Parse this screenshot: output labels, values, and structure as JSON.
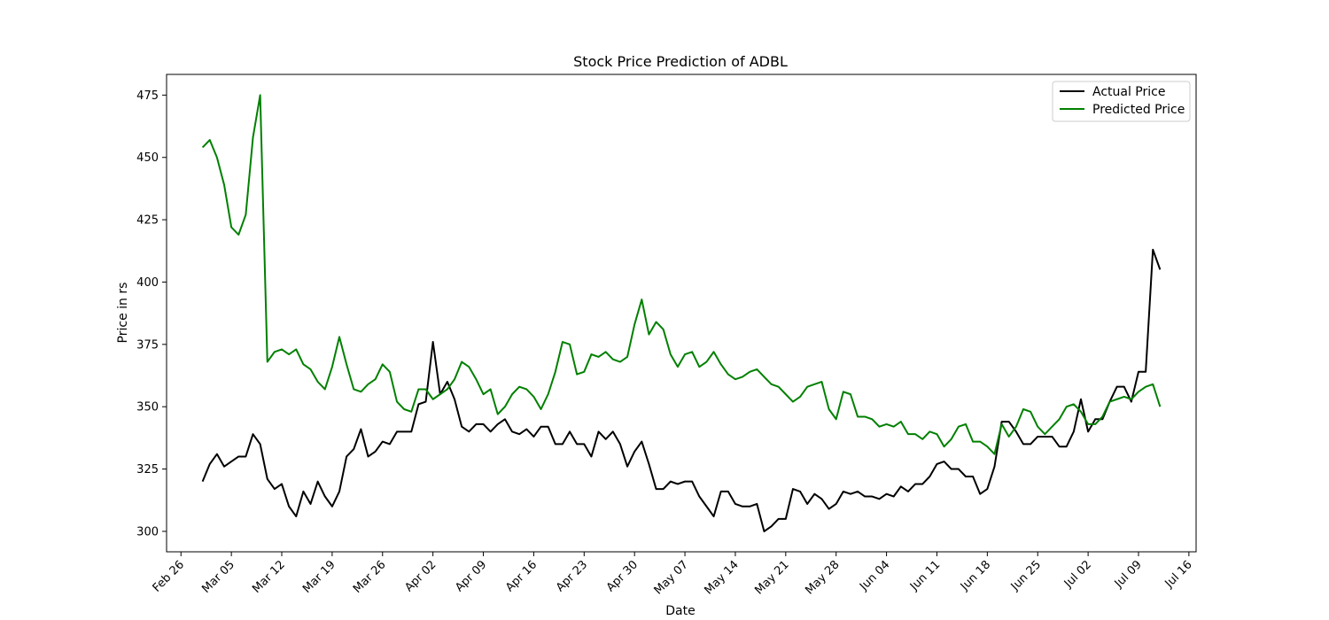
{
  "chart_data": {
    "type": "line",
    "title": "Stock Price Prediction of ADBL",
    "xlabel": "Date",
    "ylabel": "Price in rs",
    "x_tick_labels": [
      "Feb 26",
      "Mar 05",
      "Mar 12",
      "Mar 19",
      "Mar 26",
      "Apr 02",
      "Apr 09",
      "Apr 16",
      "Apr 23",
      "Apr 30",
      "May 07",
      "May 14",
      "May 21",
      "May 28",
      "Jun 04",
      "Jun 11",
      "Jun 18",
      "Jun 25",
      "Jul 02",
      "Jul 09",
      "Jul 16"
    ],
    "y_ticks": [
      300,
      325,
      350,
      375,
      400,
      425,
      450,
      475
    ],
    "xlim": [
      "2018-02-24",
      "2018-07-17"
    ],
    "ylim": [
      291.8,
      483.3
    ],
    "grid": false,
    "legend_position": "top-right",
    "series": [
      {
        "name": "Actual Price",
        "color": "#000000",
        "points": [
          [
            "2018-03-01",
            320
          ],
          [
            "2018-03-02",
            327
          ],
          [
            "2018-03-03",
            331
          ],
          [
            "2018-03-04",
            326
          ],
          [
            "2018-03-05",
            328
          ],
          [
            "2018-03-06",
            330
          ],
          [
            "2018-03-07",
            330
          ],
          [
            "2018-03-08",
            339
          ],
          [
            "2018-03-09",
            335
          ],
          [
            "2018-03-10",
            321
          ],
          [
            "2018-03-11",
            317
          ],
          [
            "2018-03-12",
            319
          ],
          [
            "2018-03-13",
            310
          ],
          [
            "2018-03-14",
            306
          ],
          [
            "2018-03-15",
            316
          ],
          [
            "2018-03-16",
            311
          ],
          [
            "2018-03-17",
            320
          ],
          [
            "2018-03-18",
            314
          ],
          [
            "2018-03-19",
            310
          ],
          [
            "2018-03-20",
            316
          ],
          [
            "2018-03-21",
            330
          ],
          [
            "2018-03-22",
            333
          ],
          [
            "2018-03-23",
            341
          ],
          [
            "2018-03-24",
            330
          ],
          [
            "2018-03-25",
            332
          ],
          [
            "2018-03-26",
            336
          ],
          [
            "2018-03-27",
            335
          ],
          [
            "2018-03-28",
            340
          ],
          [
            "2018-03-29",
            340
          ],
          [
            "2018-03-30",
            340
          ],
          [
            "2018-03-31",
            351
          ],
          [
            "2018-04-01",
            352
          ],
          [
            "2018-04-02",
            376
          ],
          [
            "2018-04-03",
            355
          ],
          [
            "2018-04-04",
            360
          ],
          [
            "2018-04-05",
            353
          ],
          [
            "2018-04-06",
            342
          ],
          [
            "2018-04-07",
            340
          ],
          [
            "2018-04-08",
            343
          ],
          [
            "2018-04-09",
            343
          ],
          [
            "2018-04-10",
            340
          ],
          [
            "2018-04-11",
            343
          ],
          [
            "2018-04-12",
            345
          ],
          [
            "2018-04-13",
            340
          ],
          [
            "2018-04-14",
            339
          ],
          [
            "2018-04-15",
            341
          ],
          [
            "2018-04-16",
            338
          ],
          [
            "2018-04-17",
            342
          ],
          [
            "2018-04-18",
            342
          ],
          [
            "2018-04-19",
            335
          ],
          [
            "2018-04-20",
            335
          ],
          [
            "2018-04-21",
            340
          ],
          [
            "2018-04-22",
            335
          ],
          [
            "2018-04-23",
            335
          ],
          [
            "2018-04-24",
            330
          ],
          [
            "2018-04-25",
            340
          ],
          [
            "2018-04-26",
            337
          ],
          [
            "2018-04-27",
            340
          ],
          [
            "2018-04-28",
            335
          ],
          [
            "2018-04-29",
            326
          ],
          [
            "2018-04-30",
            332
          ],
          [
            "2018-05-01",
            336
          ],
          [
            "2018-05-02",
            327
          ],
          [
            "2018-05-03",
            317
          ],
          [
            "2018-05-04",
            317
          ],
          [
            "2018-05-05",
            320
          ],
          [
            "2018-05-06",
            319
          ],
          [
            "2018-05-07",
            320
          ],
          [
            "2018-05-08",
            320
          ],
          [
            "2018-05-09",
            314
          ],
          [
            "2018-05-10",
            310
          ],
          [
            "2018-05-11",
            306
          ],
          [
            "2018-05-12",
            316
          ],
          [
            "2018-05-13",
            316
          ],
          [
            "2018-05-14",
            311
          ],
          [
            "2018-05-15",
            310
          ],
          [
            "2018-05-16",
            310
          ],
          [
            "2018-05-17",
            311
          ],
          [
            "2018-05-18",
            300
          ],
          [
            "2018-05-19",
            302
          ],
          [
            "2018-05-20",
            305
          ],
          [
            "2018-05-21",
            305
          ],
          [
            "2018-05-22",
            317
          ],
          [
            "2018-05-23",
            316
          ],
          [
            "2018-05-24",
            311
          ],
          [
            "2018-05-25",
            315
          ],
          [
            "2018-05-26",
            313
          ],
          [
            "2018-05-27",
            309
          ],
          [
            "2018-05-28",
            311
          ],
          [
            "2018-05-29",
            316
          ],
          [
            "2018-05-30",
            315
          ],
          [
            "2018-05-31",
            316
          ],
          [
            "2018-06-01",
            314
          ],
          [
            "2018-06-02",
            314
          ],
          [
            "2018-06-03",
            313
          ],
          [
            "2018-06-04",
            315
          ],
          [
            "2018-06-05",
            314
          ],
          [
            "2018-06-06",
            318
          ],
          [
            "2018-06-07",
            316
          ],
          [
            "2018-06-08",
            319
          ],
          [
            "2018-06-09",
            319
          ],
          [
            "2018-06-10",
            322
          ],
          [
            "2018-06-11",
            327
          ],
          [
            "2018-06-12",
            328
          ],
          [
            "2018-06-13",
            325
          ],
          [
            "2018-06-14",
            325
          ],
          [
            "2018-06-15",
            322
          ],
          [
            "2018-06-16",
            322
          ],
          [
            "2018-06-17",
            315
          ],
          [
            "2018-06-18",
            317
          ],
          [
            "2018-06-19",
            326
          ],
          [
            "2018-06-20",
            344
          ],
          [
            "2018-06-21",
            344
          ],
          [
            "2018-06-22",
            340
          ],
          [
            "2018-06-23",
            335
          ],
          [
            "2018-06-24",
            335
          ],
          [
            "2018-06-25",
            338
          ],
          [
            "2018-06-26",
            338
          ],
          [
            "2018-06-27",
            338
          ],
          [
            "2018-06-28",
            334
          ],
          [
            "2018-06-29",
            334
          ],
          [
            "2018-06-30",
            340
          ],
          [
            "2018-07-01",
            353
          ],
          [
            "2018-07-02",
            340
          ],
          [
            "2018-07-03",
            345
          ],
          [
            "2018-07-04",
            345
          ],
          [
            "2018-07-05",
            352
          ],
          [
            "2018-07-06",
            358
          ],
          [
            "2018-07-07",
            358
          ],
          [
            "2018-07-08",
            352
          ],
          [
            "2018-07-09",
            364
          ],
          [
            "2018-07-10",
            364
          ],
          [
            "2018-07-11",
            413
          ],
          [
            "2018-07-12",
            405
          ]
        ]
      },
      {
        "name": "Predicted Price",
        "color": "#008000",
        "points": [
          [
            "2018-03-01",
            454
          ],
          [
            "2018-03-02",
            457
          ],
          [
            "2018-03-03",
            450
          ],
          [
            "2018-03-04",
            439
          ],
          [
            "2018-03-05",
            422
          ],
          [
            "2018-03-06",
            419
          ],
          [
            "2018-03-07",
            427
          ],
          [
            "2018-03-08",
            458
          ],
          [
            "2018-03-09",
            475
          ],
          [
            "2018-03-10",
            368
          ],
          [
            "2018-03-11",
            372
          ],
          [
            "2018-03-12",
            373
          ],
          [
            "2018-03-13",
            371
          ],
          [
            "2018-03-14",
            373
          ],
          [
            "2018-03-15",
            367
          ],
          [
            "2018-03-16",
            365
          ],
          [
            "2018-03-17",
            360
          ],
          [
            "2018-03-18",
            357
          ],
          [
            "2018-03-19",
            366
          ],
          [
            "2018-03-20",
            378
          ],
          [
            "2018-03-21",
            367
          ],
          [
            "2018-03-22",
            357
          ],
          [
            "2018-03-23",
            356
          ],
          [
            "2018-03-24",
            359
          ],
          [
            "2018-03-25",
            361
          ],
          [
            "2018-03-26",
            367
          ],
          [
            "2018-03-27",
            364
          ],
          [
            "2018-03-28",
            352
          ],
          [
            "2018-03-29",
            349
          ],
          [
            "2018-03-30",
            348
          ],
          [
            "2018-03-31",
            357
          ],
          [
            "2018-04-01",
            357
          ],
          [
            "2018-04-02",
            353
          ],
          [
            "2018-04-03",
            355
          ],
          [
            "2018-04-04",
            357
          ],
          [
            "2018-04-05",
            361
          ],
          [
            "2018-04-06",
            368
          ],
          [
            "2018-04-07",
            366
          ],
          [
            "2018-04-08",
            361
          ],
          [
            "2018-04-09",
            355
          ],
          [
            "2018-04-10",
            357
          ],
          [
            "2018-04-11",
            347
          ],
          [
            "2018-04-12",
            350
          ],
          [
            "2018-04-13",
            355
          ],
          [
            "2018-04-14",
            358
          ],
          [
            "2018-04-15",
            357
          ],
          [
            "2018-04-16",
            354
          ],
          [
            "2018-04-17",
            349
          ],
          [
            "2018-04-18",
            355
          ],
          [
            "2018-04-19",
            364
          ],
          [
            "2018-04-20",
            376
          ],
          [
            "2018-04-21",
            375
          ],
          [
            "2018-04-22",
            363
          ],
          [
            "2018-04-23",
            364
          ],
          [
            "2018-04-24",
            371
          ],
          [
            "2018-04-25",
            370
          ],
          [
            "2018-04-26",
            372
          ],
          [
            "2018-04-27",
            369
          ],
          [
            "2018-04-28",
            368
          ],
          [
            "2018-04-29",
            370
          ],
          [
            "2018-04-30",
            383
          ],
          [
            "2018-05-01",
            393
          ],
          [
            "2018-05-02",
            379
          ],
          [
            "2018-05-03",
            384
          ],
          [
            "2018-05-04",
            381
          ],
          [
            "2018-05-05",
            371
          ],
          [
            "2018-05-06",
            366
          ],
          [
            "2018-05-07",
            371
          ],
          [
            "2018-05-08",
            372
          ],
          [
            "2018-05-09",
            366
          ],
          [
            "2018-05-10",
            368
          ],
          [
            "2018-05-11",
            372
          ],
          [
            "2018-05-12",
            367
          ],
          [
            "2018-05-13",
            363
          ],
          [
            "2018-05-14",
            361
          ],
          [
            "2018-05-15",
            362
          ],
          [
            "2018-05-16",
            364
          ],
          [
            "2018-05-17",
            365
          ],
          [
            "2018-05-18",
            362
          ],
          [
            "2018-05-19",
            359
          ],
          [
            "2018-05-20",
            358
          ],
          [
            "2018-05-21",
            355
          ],
          [
            "2018-05-22",
            352
          ],
          [
            "2018-05-23",
            354
          ],
          [
            "2018-05-24",
            358
          ],
          [
            "2018-05-25",
            359
          ],
          [
            "2018-05-26",
            360
          ],
          [
            "2018-05-27",
            349
          ],
          [
            "2018-05-28",
            345
          ],
          [
            "2018-05-29",
            356
          ],
          [
            "2018-05-30",
            355
          ],
          [
            "2018-05-31",
            346
          ],
          [
            "2018-06-01",
            346
          ],
          [
            "2018-06-02",
            345
          ],
          [
            "2018-06-03",
            342
          ],
          [
            "2018-06-04",
            343
          ],
          [
            "2018-06-05",
            342
          ],
          [
            "2018-06-06",
            344
          ],
          [
            "2018-06-07",
            339
          ],
          [
            "2018-06-08",
            339
          ],
          [
            "2018-06-09",
            337
          ],
          [
            "2018-06-10",
            340
          ],
          [
            "2018-06-11",
            339
          ],
          [
            "2018-06-12",
            334
          ],
          [
            "2018-06-13",
            337
          ],
          [
            "2018-06-14",
            342
          ],
          [
            "2018-06-15",
            343
          ],
          [
            "2018-06-16",
            336
          ],
          [
            "2018-06-17",
            336
          ],
          [
            "2018-06-18",
            334
          ],
          [
            "2018-06-19",
            331
          ],
          [
            "2018-06-20",
            343
          ],
          [
            "2018-06-21",
            338
          ],
          [
            "2018-06-22",
            342
          ],
          [
            "2018-06-23",
            349
          ],
          [
            "2018-06-24",
            348
          ],
          [
            "2018-06-25",
            342
          ],
          [
            "2018-06-26",
            339
          ],
          [
            "2018-06-27",
            342
          ],
          [
            "2018-06-28",
            345
          ],
          [
            "2018-06-29",
            350
          ],
          [
            "2018-06-30",
            351
          ],
          [
            "2018-07-01",
            348
          ],
          [
            "2018-07-02",
            343
          ],
          [
            "2018-07-03",
            343
          ],
          [
            "2018-07-04",
            346
          ],
          [
            "2018-07-05",
            352
          ],
          [
            "2018-07-06",
            353
          ],
          [
            "2018-07-07",
            354
          ],
          [
            "2018-07-08",
            353
          ],
          [
            "2018-07-09",
            356
          ],
          [
            "2018-07-10",
            358
          ],
          [
            "2018-07-11",
            359
          ],
          [
            "2018-07-12",
            350
          ]
        ]
      }
    ]
  }
}
